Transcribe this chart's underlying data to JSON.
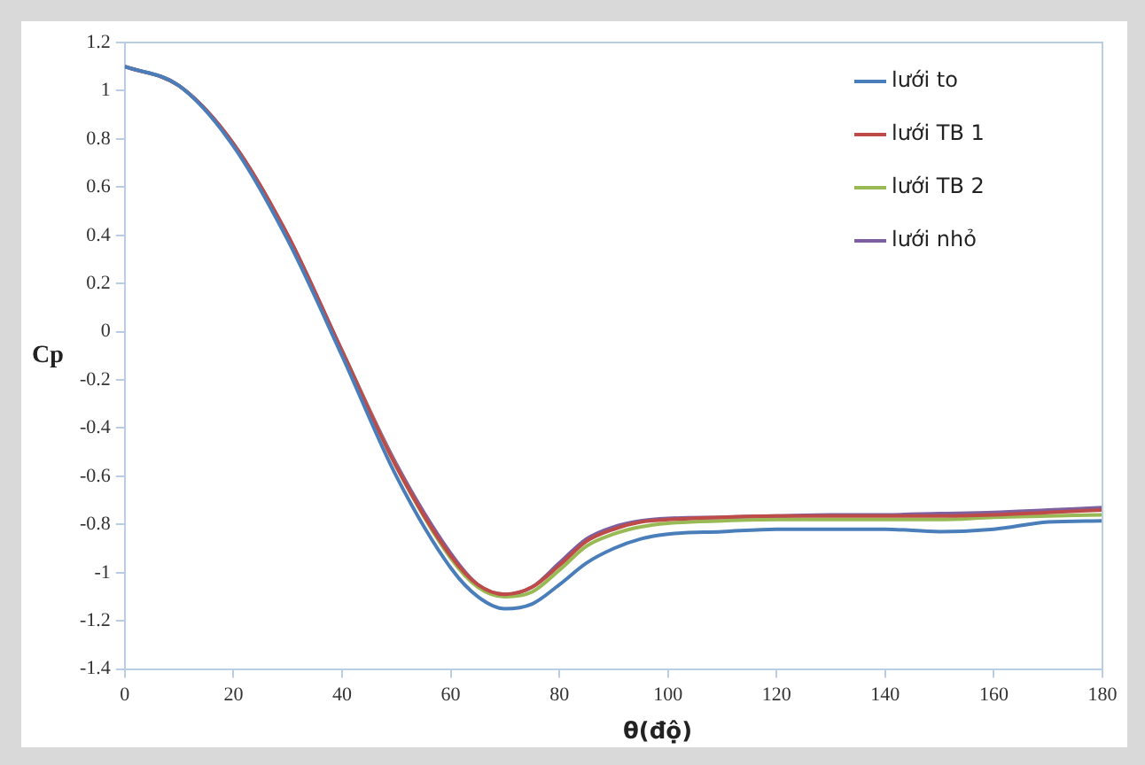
{
  "chart_data": {
    "type": "line",
    "xlabel": "θ(độ)",
    "ylabel": "Cp",
    "xlim": [
      0,
      180
    ],
    "xticks": [
      0,
      20,
      40,
      60,
      80,
      100,
      120,
      140,
      160,
      180
    ],
    "ylim": [
      -1.4,
      1.2
    ],
    "yticks": [
      -1.4,
      -1.2,
      -1,
      -0.8,
      -0.6,
      -0.4,
      -0.2,
      0,
      0.2,
      0.4,
      0.6,
      0.8,
      1,
      1.2
    ],
    "grid": false,
    "legend": "top right",
    "marker": "none",
    "line_style": "solid",
    "x": [
      0,
      10,
      20,
      30,
      40,
      50,
      60,
      65,
      70,
      75,
      80,
      85,
      90,
      95,
      100,
      110,
      120,
      130,
      140,
      150,
      160,
      170,
      180
    ],
    "series": [
      {
        "name": "lưới to",
        "color": "#4a7ebb",
        "values": [
          1.1,
          1.02,
          0.77,
          0.38,
          -0.1,
          -0.6,
          -0.98,
          -1.1,
          -1.15,
          -1.13,
          -1.05,
          -0.96,
          -0.9,
          -0.86,
          -0.84,
          -0.83,
          -0.82,
          -0.82,
          -0.82,
          -0.83,
          -0.82,
          -0.79,
          -0.785
        ]
      },
      {
        "name": "lưới TB 1",
        "color": "#be4b48",
        "values": [
          1.1,
          1.02,
          0.78,
          0.4,
          -0.08,
          -0.56,
          -0.93,
          -1.05,
          -1.09,
          -1.06,
          -0.97,
          -0.87,
          -0.82,
          -0.79,
          -0.78,
          -0.77,
          -0.765,
          -0.765,
          -0.765,
          -0.765,
          -0.76,
          -0.75,
          -0.74
        ]
      },
      {
        "name": "lưới TB 2",
        "color": "#98b954",
        "values": [
          null,
          null,
          null,
          null,
          -0.08,
          -0.56,
          -0.94,
          -1.06,
          -1.1,
          -1.08,
          -0.99,
          -0.89,
          -0.84,
          -0.81,
          -0.795,
          -0.785,
          -0.78,
          -0.78,
          -0.78,
          -0.78,
          -0.77,
          -0.765,
          -0.76
        ]
      },
      {
        "name": "lưới nhỏ",
        "color": "#7d60a0",
        "values": [
          1.1,
          1.02,
          0.78,
          0.4,
          -0.08,
          -0.55,
          -0.92,
          -1.05,
          -1.09,
          -1.06,
          -0.96,
          -0.86,
          -0.81,
          -0.785,
          -0.775,
          -0.77,
          -0.765,
          -0.76,
          -0.76,
          -0.755,
          -0.75,
          -0.74,
          -0.73
        ]
      }
    ]
  }
}
